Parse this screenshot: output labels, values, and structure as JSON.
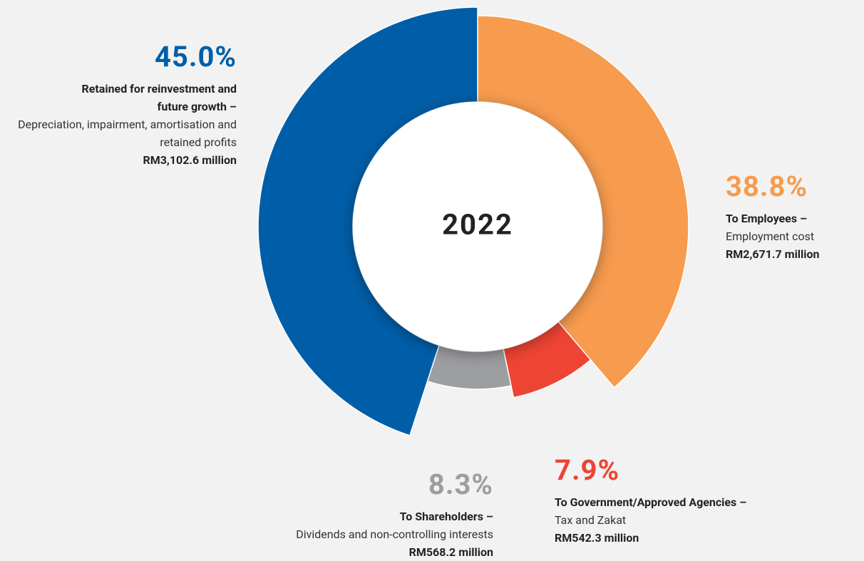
{
  "chart_data": {
    "type": "pie",
    "center_label": "2022",
    "categories": [
      "To Employees –",
      "To Government/Approved Agencies –",
      "To Shareholders –",
      "Retained for reinvestment and future growth –"
    ],
    "descriptions": [
      "Employment cost",
      "Tax and Zakat",
      "Dividends and non-controlling interests",
      "Depreciation, impairment, amortisation and retained profits"
    ],
    "amounts": [
      "RM2,671.7 million",
      "RM542.3 million",
      "RM568.2 million",
      "RM3,102.6 million"
    ],
    "values": [
      38.8,
      7.9,
      8.3,
      45.0
    ],
    "value_labels": [
      "38.8%",
      "7.9%",
      "8.3%",
      "45.0%"
    ],
    "colors": [
      "#f79b4e",
      "#ee4433",
      "#9d9ea1",
      "#005ea8"
    ]
  }
}
